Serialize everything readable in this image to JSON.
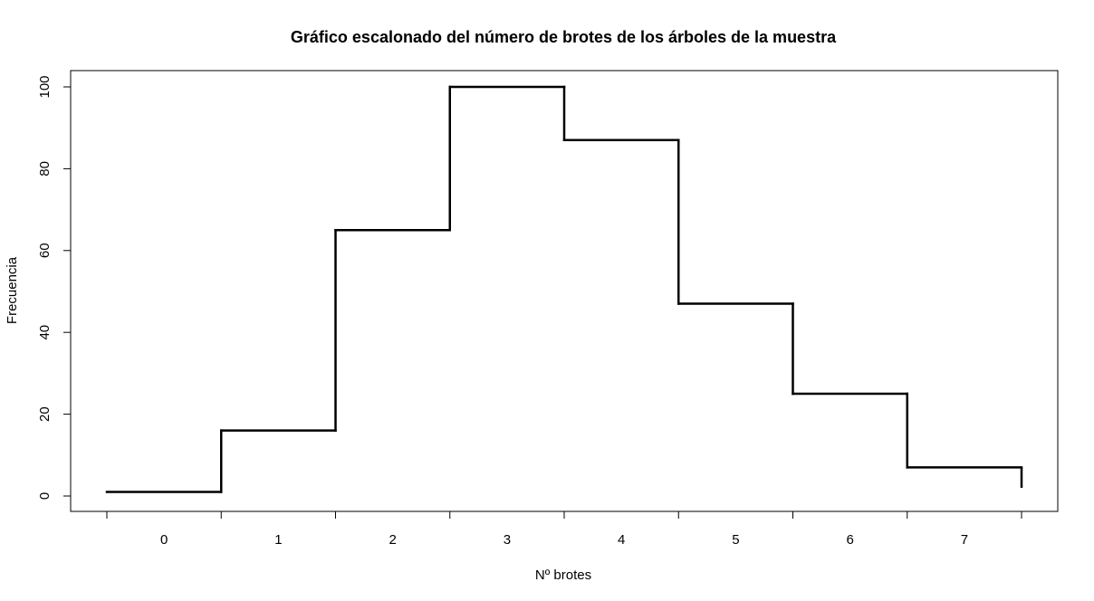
{
  "chart_data": {
    "type": "line",
    "style": "step",
    "title": "Gráfico escalonado del número de brotes de los árboles de la muestra",
    "xlabel": "Nº brotes",
    "ylabel": "Frecuencia",
    "categories": [
      "0",
      "1",
      "2",
      "3",
      "4",
      "5",
      "6",
      "7"
    ],
    "values": [
      1,
      16,
      65,
      100,
      87,
      47,
      25,
      7
    ],
    "final_drop": 2,
    "xlim": [
      -0.5,
      7.5
    ],
    "ylim": [
      0,
      100
    ],
    "yticks": [
      0,
      20,
      40,
      60,
      80,
      100
    ],
    "grid": false,
    "legend": "none",
    "line_color": "#000000"
  }
}
